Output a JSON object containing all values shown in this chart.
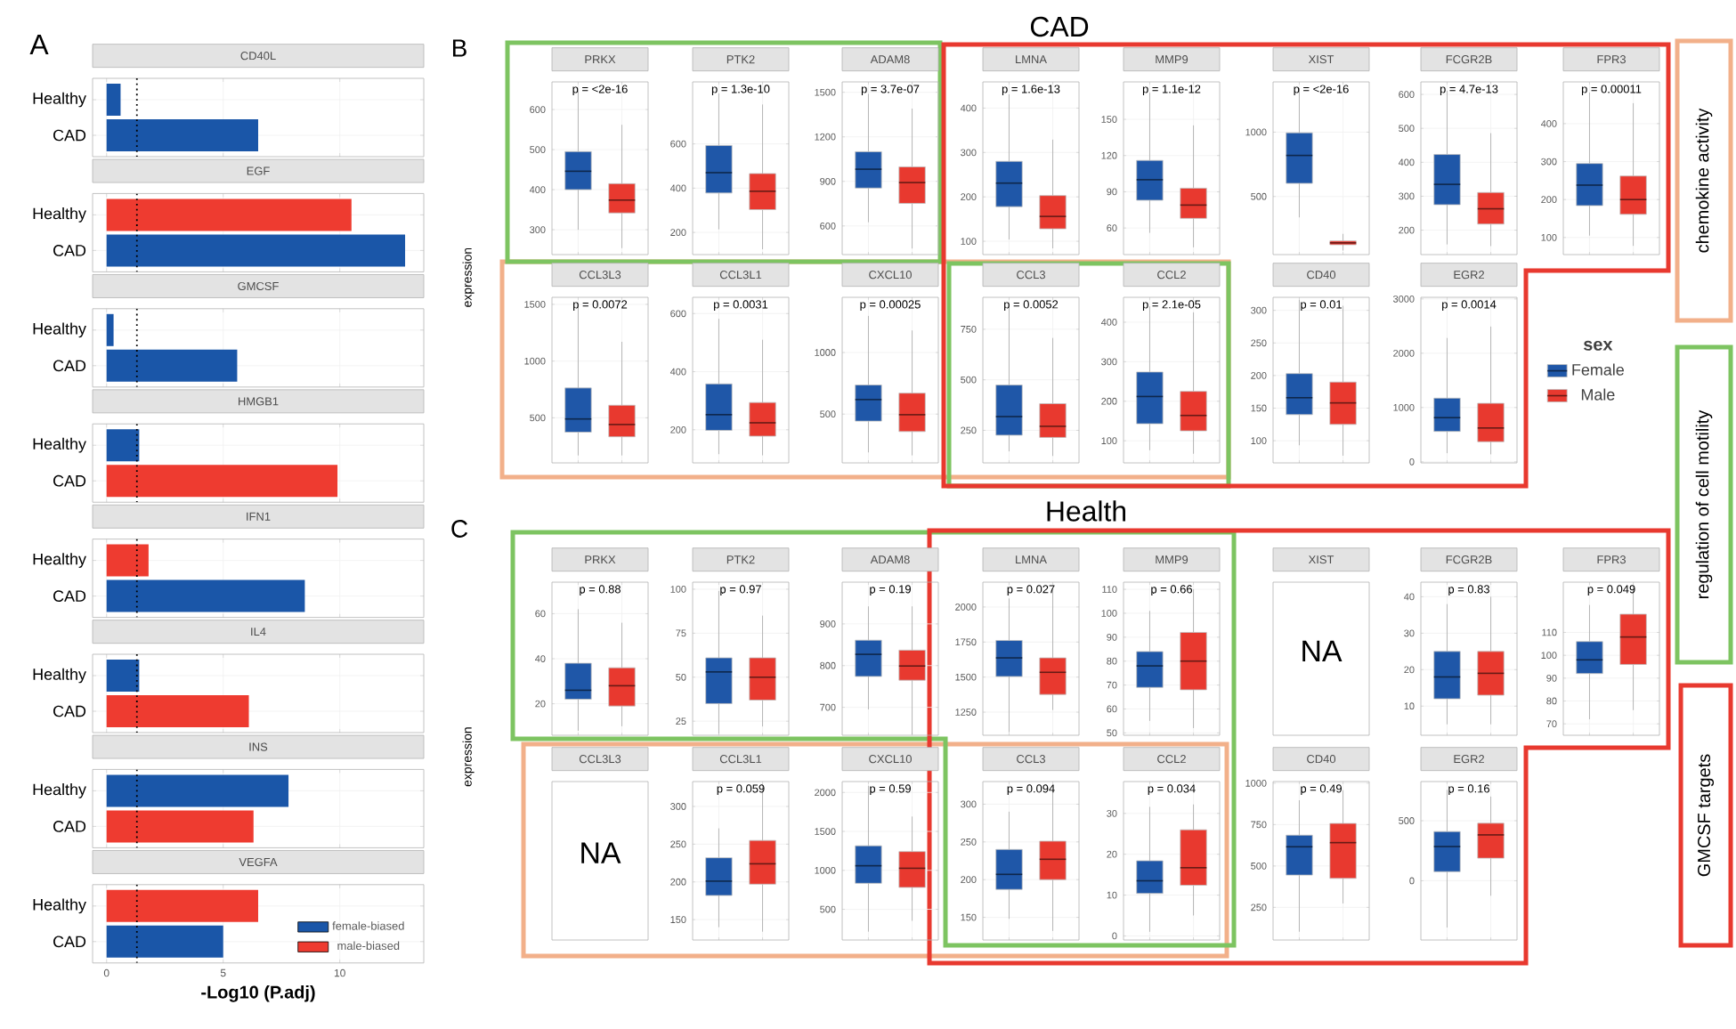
{
  "chart_data": [
    {
      "type": "bar",
      "orientation": "horizontal",
      "title": "CD40L",
      "categories": [
        "Healthy",
        "CAD"
      ],
      "values": [
        0.6,
        6.5
      ],
      "colors": [
        "#1a56a8",
        "#1a56a8"
      ],
      "xlim": [
        -0.6,
        13.6
      ],
      "xticks": [
        0,
        5,
        10
      ],
      "tick_labels": "y",
      "grid": true,
      "ref_lines": [
        {
          "axis": "x",
          "value": 1.3,
          "line_style": "dotted"
        }
      ]
    },
    {
      "type": "bar",
      "orientation": "horizontal",
      "title": "EGF",
      "categories": [
        "Healthy",
        "CAD"
      ],
      "values": [
        10.5,
        12.8
      ],
      "colors": [
        "#ee3b30",
        "#1a56a8"
      ],
      "xlim": [
        -0.6,
        13.6
      ],
      "xticks": [
        0,
        5,
        10
      ],
      "tick_labels": "y",
      "grid": true,
      "ref_lines": [
        {
          "axis": "x",
          "value": 1.3,
          "line_style": "dotted"
        }
      ]
    },
    {
      "type": "bar",
      "orientation": "horizontal",
      "title": "GMCSF",
      "categories": [
        "Healthy",
        "CAD"
      ],
      "values": [
        0.3,
        5.6
      ],
      "colors": [
        "#1a56a8",
        "#1a56a8"
      ],
      "xlim": [
        -0.6,
        13.6
      ],
      "xticks": [
        0,
        5,
        10
      ],
      "tick_labels": "y",
      "grid": true,
      "ref_lines": [
        {
          "axis": "x",
          "value": 1.3,
          "line_style": "dotted"
        }
      ]
    },
    {
      "type": "bar",
      "orientation": "horizontal",
      "title": "HMGB1",
      "categories": [
        "Healthy",
        "CAD"
      ],
      "values": [
        1.4,
        9.9
      ],
      "colors": [
        "#1a56a8",
        "#ee3b30"
      ],
      "xlim": [
        -0.6,
        13.6
      ],
      "xticks": [
        0,
        5,
        10
      ],
      "tick_labels": "y",
      "grid": true,
      "ref_lines": [
        {
          "axis": "x",
          "value": 1.3,
          "line_style": "dotted"
        }
      ]
    },
    {
      "type": "bar",
      "orientation": "horizontal",
      "title": "IFN1",
      "categories": [
        "Healthy",
        "CAD"
      ],
      "values": [
        1.8,
        8.5
      ],
      "colors": [
        "#ee3b30",
        "#1a56a8"
      ],
      "xlim": [
        -0.6,
        13.6
      ],
      "xticks": [
        0,
        5,
        10
      ],
      "tick_labels": "y",
      "grid": true,
      "ref_lines": [
        {
          "axis": "x",
          "value": 1.3,
          "line_style": "dotted"
        }
      ]
    },
    {
      "type": "bar",
      "orientation": "horizontal",
      "title": "IL4",
      "categories": [
        "Healthy",
        "CAD"
      ],
      "values": [
        1.4,
        6.1
      ],
      "colors": [
        "#1a56a8",
        "#ee3b30"
      ],
      "xlim": [
        -0.6,
        13.6
      ],
      "xticks": [
        0,
        5,
        10
      ],
      "tick_labels": "y",
      "grid": true,
      "ref_lines": [
        {
          "axis": "x",
          "value": 1.3,
          "line_style": "dotted"
        }
      ]
    },
    {
      "type": "bar",
      "orientation": "horizontal",
      "title": "INS",
      "categories": [
        "Healthy",
        "CAD"
      ],
      "values": [
        7.8,
        6.3
      ],
      "colors": [
        "#1a56a8",
        "#ee3b30"
      ],
      "xlim": [
        -0.6,
        13.6
      ],
      "xticks": [
        0,
        5,
        10
      ],
      "tick_labels": "y",
      "grid": true,
      "ref_lines": [
        {
          "axis": "x",
          "value": 1.3,
          "line_style": "dotted"
        }
      ]
    },
    {
      "type": "bar",
      "orientation": "horizontal",
      "title": "VEGFA",
      "xlabel": "-Log10 (P.adj)",
      "categories": [
        "Healthy",
        "CAD"
      ],
      "series": [
        {
          "name": "female-biased",
          "color": "#1a56a8",
          "values": [
            null,
            5.0
          ]
        },
        {
          "name": "male-biased",
          "color": "#ee3b30",
          "values": [
            6.5,
            null
          ]
        }
      ],
      "xlim": [
        -0.6,
        13.6
      ],
      "xticks": [
        0,
        5,
        10
      ],
      "grid": true,
      "legend": "bottom right",
      "ref_lines": [
        {
          "axis": "x",
          "value": 1.3,
          "line_style": "dotted"
        }
      ]
    },
    {
      "type": "box",
      "title": "PRKX",
      "annotations": [
        "p = <2e-16"
      ],
      "categories": [
        null,
        null
      ],
      "ylim": [
        238,
        669
      ],
      "yticks": [
        300,
        400,
        500,
        600
      ],
      "grid": true,
      "series": [
        {
          "color": "#1f57a8",
          "boxes": [
            {
              "low": 300,
              "q1": 400,
              "median": 446,
              "q3": 495,
              "high": 646
            },
            null
          ]
        },
        {
          "color": "#e8392f",
          "boxes": [
            null,
            {
              "low": 254,
              "q1": 342,
              "median": 374,
              "q3": 415,
              "high": 562
            }
          ]
        }
      ]
    },
    {
      "type": "box",
      "title": "PTK2",
      "annotations": [
        "p = 1.3e-10"
      ],
      "categories": [
        null,
        null
      ],
      "ylim": [
        100,
        880
      ],
      "yticks": [
        200,
        400,
        600
      ],
      "grid": true,
      "series": [
        {
          "color": "#1f57a8",
          "boxes": [
            {
              "low": 214,
              "q1": 378,
              "median": 470,
              "q3": 593,
              "high": 828
            },
            null
          ]
        },
        {
          "color": "#e8392f",
          "boxes": [
            null,
            {
              "low": 124,
              "q1": 303,
              "median": 386,
              "q3": 466,
              "high": 778
            }
          ]
        }
      ]
    },
    {
      "type": "box",
      "title": "ADAM8",
      "annotations": [
        "p = 3.7e-07"
      ],
      "categories": [
        null,
        null
      ],
      "ylim": [
        407,
        1570
      ],
      "yticks": [
        600,
        900,
        1200,
        1500
      ],
      "grid": true,
      "series": [
        {
          "color": "#1f57a8",
          "boxes": [
            {
              "low": 625,
              "q1": 855,
              "median": 982,
              "q3": 1100,
              "high": 1490
            },
            null
          ]
        },
        {
          "color": "#e8392f",
          "boxes": [
            null,
            {
              "low": 448,
              "q1": 752,
              "median": 892,
              "q3": 998,
              "high": 1390
            }
          ]
        }
      ]
    },
    {
      "type": "box",
      "title": "LMNA",
      "annotations": [
        "p = 1.6e-13"
      ],
      "categories": [
        null,
        null
      ],
      "ylim": [
        70,
        459
      ],
      "yticks": [
        100,
        200,
        300,
        400
      ],
      "grid": true,
      "series": [
        {
          "color": "#1f57a8",
          "boxes": [
            {
              "low": 104,
              "q1": 178,
              "median": 231,
              "q3": 280,
              "high": 431
            },
            null
          ]
        },
        {
          "color": "#e8392f",
          "boxes": [
            null,
            {
              "low": 84,
              "q1": 128,
              "median": 156,
              "q3": 203,
              "high": 329
            }
          ]
        }
      ]
    },
    {
      "type": "box",
      "title": "MMP9",
      "annotations": [
        "p = 1.1e-12"
      ],
      "categories": [
        null,
        null
      ],
      "ylim": [
        38,
        181
      ],
      "yticks": [
        60,
        90,
        120,
        150
      ],
      "grid": true,
      "series": [
        {
          "color": "#1f57a8",
          "boxes": [
            {
              "low": 56,
              "q1": 83,
              "median": 100,
              "q3": 116,
              "high": 172
            },
            null
          ]
        },
        {
          "color": "#e8392f",
          "boxes": [
            null,
            {
              "low": 44,
              "q1": 68,
              "median": 79,
              "q3": 93,
              "high": 145
            }
          ]
        }
      ]
    },
    {
      "type": "box",
      "title": "XIST",
      "annotations": [
        "p = <2e-16"
      ],
      "categories": [
        null,
        null
      ],
      "ylim": [
        49,
        1390
      ],
      "yticks": [
        500,
        1000
      ],
      "grid": true,
      "series": [
        {
          "color": "#1f57a8",
          "boxes": [
            {
              "low": 338,
              "q1": 602,
              "median": 819,
              "q3": 995,
              "high": 1340
            },
            null
          ]
        },
        {
          "color": "#e8392f",
          "boxes": [
            null,
            {
              "low": 80,
              "q1": 125,
              "median": 140,
              "q3": 155,
              "high": 210
            }
          ]
        }
      ]
    },
    {
      "type": "box",
      "title": "FCGR2B",
      "annotations": [
        "p = 4.7e-13"
      ],
      "categories": [
        null,
        null
      ],
      "ylim": [
        128,
        637
      ],
      "yticks": [
        200,
        300,
        400,
        500,
        600
      ],
      "grid": true,
      "series": [
        {
          "color": "#1f57a8",
          "boxes": [
            {
              "low": 158,
              "q1": 275,
              "median": 335,
              "q3": 423,
              "high": 611
            },
            null
          ]
        },
        {
          "color": "#e8392f",
          "boxes": [
            null,
            {
              "low": 153,
              "q1": 218,
              "median": 263,
              "q3": 311,
              "high": 486
            }
          ]
        }
      ]
    },
    {
      "type": "box",
      "title": "FPR3",
      "annotations": [
        "p = 0.00011"
      ],
      "categories": [
        null,
        null
      ],
      "ylim": [
        55,
        510
      ],
      "yticks": [
        100,
        200,
        300,
        400
      ],
      "grid": true,
      "series": [
        {
          "color": "#1f57a8",
          "boxes": [
            {
              "low": 105,
              "q1": 184,
              "median": 238,
              "q3": 295,
              "high": 482
            },
            null
          ]
        },
        {
          "color": "#e8392f",
          "boxes": [
            null,
            {
              "low": 78,
              "q1": 161,
              "median": 200,
              "q3": 262,
              "high": 454
            }
          ]
        }
      ]
    },
    {
      "type": "box",
      "title": "CCL3L3",
      "annotations": [
        "p = 0.0072"
      ],
      "ylabel": "expression",
      "categories": [
        null,
        null
      ],
      "ylim": [
        103,
        1562
      ],
      "yticks": [
        500,
        1000,
        1500
      ],
      "grid": true,
      "series": [
        {
          "color": "#1f57a8",
          "boxes": [
            {
              "low": 168,
              "q1": 374,
              "median": 490,
              "q3": 763,
              "high": 1485
            },
            null
          ]
        },
        {
          "color": "#e8392f",
          "boxes": [
            null,
            {
              "low": 168,
              "q1": 333,
              "median": 441,
              "q3": 611,
              "high": 1170
            }
          ]
        }
      ]
    },
    {
      "type": "box",
      "title": "CCL3L1",
      "annotations": [
        "p = 0.0031"
      ],
      "categories": [
        null,
        null
      ],
      "ylim": [
        86,
        656
      ],
      "yticks": [
        200,
        400,
        600
      ],
      "grid": true,
      "series": [
        {
          "color": "#1f57a8",
          "boxes": [
            {
              "low": 116,
              "q1": 198,
              "median": 252,
              "q3": 358,
              "high": 582
            },
            null
          ]
        },
        {
          "color": "#e8392f",
          "boxes": [
            null,
            {
              "low": 112,
              "q1": 178,
              "median": 224,
              "q3": 294,
              "high": 510
            }
          ]
        }
      ]
    },
    {
      "type": "box",
      "title": "CXCL10",
      "annotations": [
        "p = 0.00025"
      ],
      "categories": [
        null,
        null
      ],
      "ylim": [
        104,
        1448
      ],
      "yticks": [
        500,
        1000
      ],
      "grid": true,
      "series": [
        {
          "color": "#1f57a8",
          "boxes": [
            {
              "low": 189,
              "q1": 443,
              "median": 618,
              "q3": 736,
              "high": 1297
            },
            null
          ]
        },
        {
          "color": "#e8392f",
          "boxes": [
            null,
            {
              "low": 165,
              "q1": 358,
              "median": 495,
              "q3": 670,
              "high": 1179
            }
          ]
        }
      ]
    },
    {
      "type": "box",
      "title": "CCL3",
      "annotations": [
        "p = 0.0052"
      ],
      "categories": [
        null,
        null
      ],
      "ylim": [
        89,
        908
      ],
      "yticks": [
        250,
        500,
        750
      ],
      "grid": true,
      "series": [
        {
          "color": "#1f57a8",
          "boxes": [
            {
              "low": 146,
              "q1": 226,
              "median": 318,
              "q3": 474,
              "high": 865
            },
            null
          ]
        },
        {
          "color": "#e8392f",
          "boxes": [
            null,
            {
              "low": 123,
              "q1": 215,
              "median": 270,
              "q3": 382,
              "high": 707
            }
          ]
        }
      ]
    },
    {
      "type": "box",
      "title": "CCL2",
      "annotations": [
        "p = 2.1e-05"
      ],
      "categories": [
        null,
        null
      ],
      "ylim": [
        44,
        463
      ],
      "yticks": [
        100,
        200,
        300,
        400
      ],
      "grid": true,
      "series": [
        {
          "color": "#1f57a8",
          "boxes": [
            {
              "low": 76,
              "q1": 143,
              "median": 212,
              "q3": 274,
              "high": 440
            },
            null
          ]
        },
        {
          "color": "#e8392f",
          "boxes": [
            null,
            {
              "low": 67,
              "q1": 125,
              "median": 164,
              "q3": 225,
              "high": 425
            }
          ]
        }
      ]
    },
    {
      "type": "box",
      "title": "CD40",
      "annotations": [
        "p = 0.01"
      ],
      "categories": [
        null,
        null
      ],
      "ylim": [
        66,
        320
      ],
      "yticks": [
        100,
        150,
        200,
        250,
        300
      ],
      "grid": true,
      "series": [
        {
          "color": "#1f57a8",
          "boxes": [
            {
              "low": 93,
              "q1": 140,
              "median": 166,
              "q3": 203,
              "high": 316
            },
            null
          ]
        },
        {
          "color": "#e8392f",
          "boxes": [
            null,
            {
              "low": 77,
              "q1": 125,
              "median": 158,
              "q3": 190,
              "high": 307
            }
          ]
        }
      ]
    },
    {
      "type": "box",
      "title": "EGR2",
      "annotations": [
        "p = 0.0014"
      ],
      "categories": [
        null,
        null
      ],
      "ylim": [
        -20,
        3030
      ],
      "yticks": [
        0,
        1000,
        2000,
        3000
      ],
      "grid": true,
      "legend": "right",
      "legend_title": "sex",
      "series": [
        {
          "name": "Female",
          "color": "#1f57a8",
          "boxes": [
            {
              "low": 158,
              "q1": 560,
              "median": 813,
              "q3": 1172,
              "high": 2281
            },
            null
          ]
        },
        {
          "name": "Male",
          "color": "#e8392f",
          "boxes": [
            null,
            {
              "low": 137,
              "q1": 370,
              "median": 623,
              "q3": 1077,
              "high": 2492
            }
          ]
        }
      ]
    },
    {
      "type": "box",
      "title": "PRKX",
      "annotations": [
        "p = 0.88"
      ],
      "ylabel": "expression",
      "categories": [
        null,
        null
      ],
      "ylim": [
        6,
        74
      ],
      "yticks": [
        20,
        40,
        60
      ],
      "grid": true,
      "series": [
        {
          "color": "#1f57a8",
          "boxes": [
            {
              "low": 8,
              "q1": 22,
              "median": 26,
              "q3": 38,
              "high": 62
            },
            null
          ]
        },
        {
          "color": "#e8392f",
          "boxes": [
            null,
            {
              "low": 10,
              "q1": 19,
              "median": 28,
              "q3": 36,
              "high": 56
            }
          ]
        }
      ]
    },
    {
      "type": "box",
      "title": "PTK2",
      "annotations": [
        "p = 0.97"
      ],
      "categories": [
        null,
        null
      ],
      "ylim": [
        17,
        104
      ],
      "yticks": [
        25,
        50,
        75,
        100
      ],
      "grid": true,
      "series": [
        {
          "color": "#1f57a8",
          "boxes": [
            {
              "low": 18,
              "q1": 35,
              "median": 53,
              "q3": 61,
              "high": 99
            },
            null
          ]
        },
        {
          "color": "#e8392f",
          "boxes": [
            null,
            {
              "low": 22,
              "q1": 37,
              "median": 50,
              "q3": 61,
              "high": 85
            }
          ]
        }
      ]
    },
    {
      "type": "box",
      "title": "ADAM8",
      "annotations": [
        "p = 0.19"
      ],
      "categories": [
        null,
        null
      ],
      "ylim": [
        633,
        1000
      ],
      "yticks": [
        700,
        800,
        900
      ],
      "grid": true,
      "series": [
        {
          "color": "#1f57a8",
          "boxes": [
            {
              "low": 695,
              "q1": 774,
              "median": 827,
              "q3": 861,
              "high": 942
            },
            null
          ]
        },
        {
          "color": "#e8392f",
          "boxes": [
            null,
            {
              "low": 635,
              "q1": 765,
              "median": 799,
              "q3": 837,
              "high": 942
            }
          ]
        }
      ]
    },
    {
      "type": "box",
      "title": "LMNA",
      "annotations": [
        "p = 0.027"
      ],
      "categories": [
        null,
        null
      ],
      "ylim": [
        1085,
        2177
      ],
      "yticks": [
        1250,
        1500,
        1750,
        2000
      ],
      "grid": true,
      "series": [
        {
          "color": "#1f57a8",
          "boxes": [
            {
              "low": 1107,
              "q1": 1504,
              "median": 1637,
              "q3": 1761,
              "high": 2061
            },
            null
          ]
        },
        {
          "color": "#e8392f",
          "boxes": [
            null,
            {
              "low": 1265,
              "q1": 1376,
              "median": 1534,
              "q3": 1637,
              "high": 2134
            }
          ]
        }
      ]
    },
    {
      "type": "box",
      "title": "MMP9",
      "annotations": [
        "p = 0.66"
      ],
      "categories": [
        null,
        null
      ],
      "ylim": [
        49,
        113
      ],
      "yticks": [
        50,
        60,
        70,
        80,
        90,
        100,
        110
      ],
      "grid": true,
      "series": [
        {
          "color": "#1f57a8",
          "boxes": [
            {
              "low": 55,
              "q1": 69,
              "median": 78,
              "q3": 84,
              "high": 101
            },
            null
          ]
        },
        {
          "color": "#e8392f",
          "boxes": [
            null,
            {
              "low": 52,
              "q1": 68,
              "median": 80,
              "q3": 92,
              "high": 110
            }
          ]
        }
      ]
    },
    {
      "type": "other",
      "title": "XIST",
      "annotations": [
        "NA"
      ]
    },
    {
      "type": "box",
      "title": "FCGR2B",
      "annotations": [
        "p = 0.83"
      ],
      "categories": [
        null,
        null
      ],
      "ylim": [
        2,
        44
      ],
      "yticks": [
        10,
        20,
        30,
        40
      ],
      "grid": true,
      "series": [
        {
          "color": "#1f57a8",
          "boxes": [
            {
              "low": 5,
              "q1": 12,
              "median": 18,
              "q3": 25,
              "high": 38
            },
            null
          ]
        },
        {
          "color": "#e8392f",
          "boxes": [
            null,
            {
              "low": 5,
              "q1": 13,
              "median": 19,
              "q3": 25,
              "high": 40
            }
          ]
        }
      ]
    },
    {
      "type": "box",
      "title": "FPR3",
      "annotations": [
        "p = 0.049"
      ],
      "categories": [
        null,
        null
      ],
      "ylim": [
        65,
        132
      ],
      "yticks": [
        70,
        80,
        90,
        100,
        110
      ],
      "grid": true,
      "series": [
        {
          "color": "#1f57a8",
          "boxes": [
            {
              "low": 72,
              "q1": 92,
              "median": 98,
              "q3": 106,
              "high": 122
            },
            null
          ]
        },
        {
          "color": "#e8392f",
          "boxes": [
            null,
            {
              "low": 76,
              "q1": 96,
              "median": 108,
              "q3": 118,
              "high": 130
            }
          ]
        }
      ]
    },
    {
      "type": "other",
      "title": "CCL3L3",
      "annotations": [
        "NA"
      ]
    },
    {
      "type": "box",
      "title": "CCL3L1",
      "annotations": [
        "p = 0.059"
      ],
      "categories": [
        null,
        null
      ],
      "ylim": [
        123,
        333
      ],
      "yticks": [
        150,
        200,
        250,
        300
      ],
      "grid": true,
      "series": [
        {
          "color": "#1f57a8",
          "boxes": [
            {
              "low": 140,
              "q1": 182,
              "median": 201,
              "q3": 232,
              "high": 271
            },
            null
          ]
        },
        {
          "color": "#e8392f",
          "boxes": [
            null,
            {
              "low": 134,
              "q1": 197,
              "median": 224,
              "q3": 255,
              "high": 328
            }
          ]
        }
      ]
    },
    {
      "type": "box",
      "title": "CXCL10",
      "annotations": [
        "p = 0.59"
      ],
      "categories": [
        null,
        null
      ],
      "ylim": [
        106,
        2140
      ],
      "yticks": [
        500,
        1000,
        1500,
        2000
      ],
      "grid": true,
      "series": [
        {
          "color": "#1f57a8",
          "boxes": [
            {
              "low": 213,
              "q1": 834,
              "median": 1059,
              "q3": 1316,
              "high": 2086
            },
            null
          ]
        },
        {
          "color": "#e8392f",
          "boxes": [
            null,
            {
              "low": 352,
              "q1": 781,
              "median": 1027,
              "q3": 1241,
              "high": 1691
            }
          ]
        }
      ]
    },
    {
      "type": "box",
      "title": "CCL3",
      "annotations": [
        "p = 0.094"
      ],
      "categories": [
        null,
        null
      ],
      "ylim": [
        120,
        330
      ],
      "yticks": [
        150,
        200,
        250,
        300
      ],
      "grid": true,
      "series": [
        {
          "color": "#1f57a8",
          "boxes": [
            {
              "low": 148,
              "q1": 187,
              "median": 207,
              "q3": 240,
              "high": 290
            },
            null
          ]
        },
        {
          "color": "#e8392f",
          "boxes": [
            null,
            {
              "low": 132,
              "q1": 200,
              "median": 227,
              "q3": 251,
              "high": 319
            }
          ]
        }
      ]
    },
    {
      "type": "box",
      "title": "CCL2",
      "annotations": [
        "p = 0.034"
      ],
      "categories": [
        null,
        null
      ],
      "ylim": [
        -1,
        37.8
      ],
      "yticks": [
        0,
        10,
        20,
        30
      ],
      "grid": true,
      "series": [
        {
          "color": "#1f57a8",
          "boxes": [
            {
              "low": 1,
              "q1": 10.4,
              "median": 13.5,
              "q3": 18.4,
              "high": 31.6
            },
            null
          ]
        },
        {
          "color": "#e8392f",
          "boxes": [
            null,
            {
              "low": 5,
              "q1": 12.4,
              "median": 16.7,
              "q3": 26,
              "high": 32.2
            }
          ]
        }
      ]
    },
    {
      "type": "box",
      "title": "CD40",
      "annotations": [
        "p = 0.49"
      ],
      "categories": [
        null,
        null
      ],
      "ylim": [
        53,
        1010
      ],
      "yticks": [
        250,
        500,
        750,
        1000
      ],
      "grid": true,
      "series": [
        {
          "color": "#1f57a8",
          "boxes": [
            {
              "low": 103,
              "q1": 445,
              "median": 616,
              "q3": 686,
              "high": 897
            },
            null
          ]
        },
        {
          "color": "#e8392f",
          "boxes": [
            null,
            {
              "low": 274,
              "q1": 425,
              "median": 641,
              "q3": 757,
              "high": 958
            }
          ]
        }
      ]
    },
    {
      "type": "box",
      "title": "EGR2",
      "annotations": [
        "p = 0.16"
      ],
      "categories": [
        null,
        null
      ],
      "ylim": [
        -493,
        826
      ],
      "yticks": [
        0,
        500
      ],
      "grid": true,
      "series": [
        {
          "color": "#1f57a8",
          "boxes": [
            {
              "low": -389,
              "q1": 76,
              "median": 285,
              "q3": 410,
              "high": 757
            },
            null
          ]
        },
        {
          "color": "#e8392f",
          "boxes": [
            null,
            {
              "low": -125,
              "q1": 188,
              "median": 382,
              "q3": 479,
              "high": 701
            }
          ]
        }
      ]
    },
    {
      "type": "other",
      "annotations": [
        "A",
        "B",
        "C",
        "CAD",
        "Health",
        "chemokine activity",
        "regulation of cell motility",
        "GMCSF targets"
      ],
      "colors": [
        "#f2b08a",
        "#7dc461",
        "#e8392f"
      ]
    }
  ]
}
